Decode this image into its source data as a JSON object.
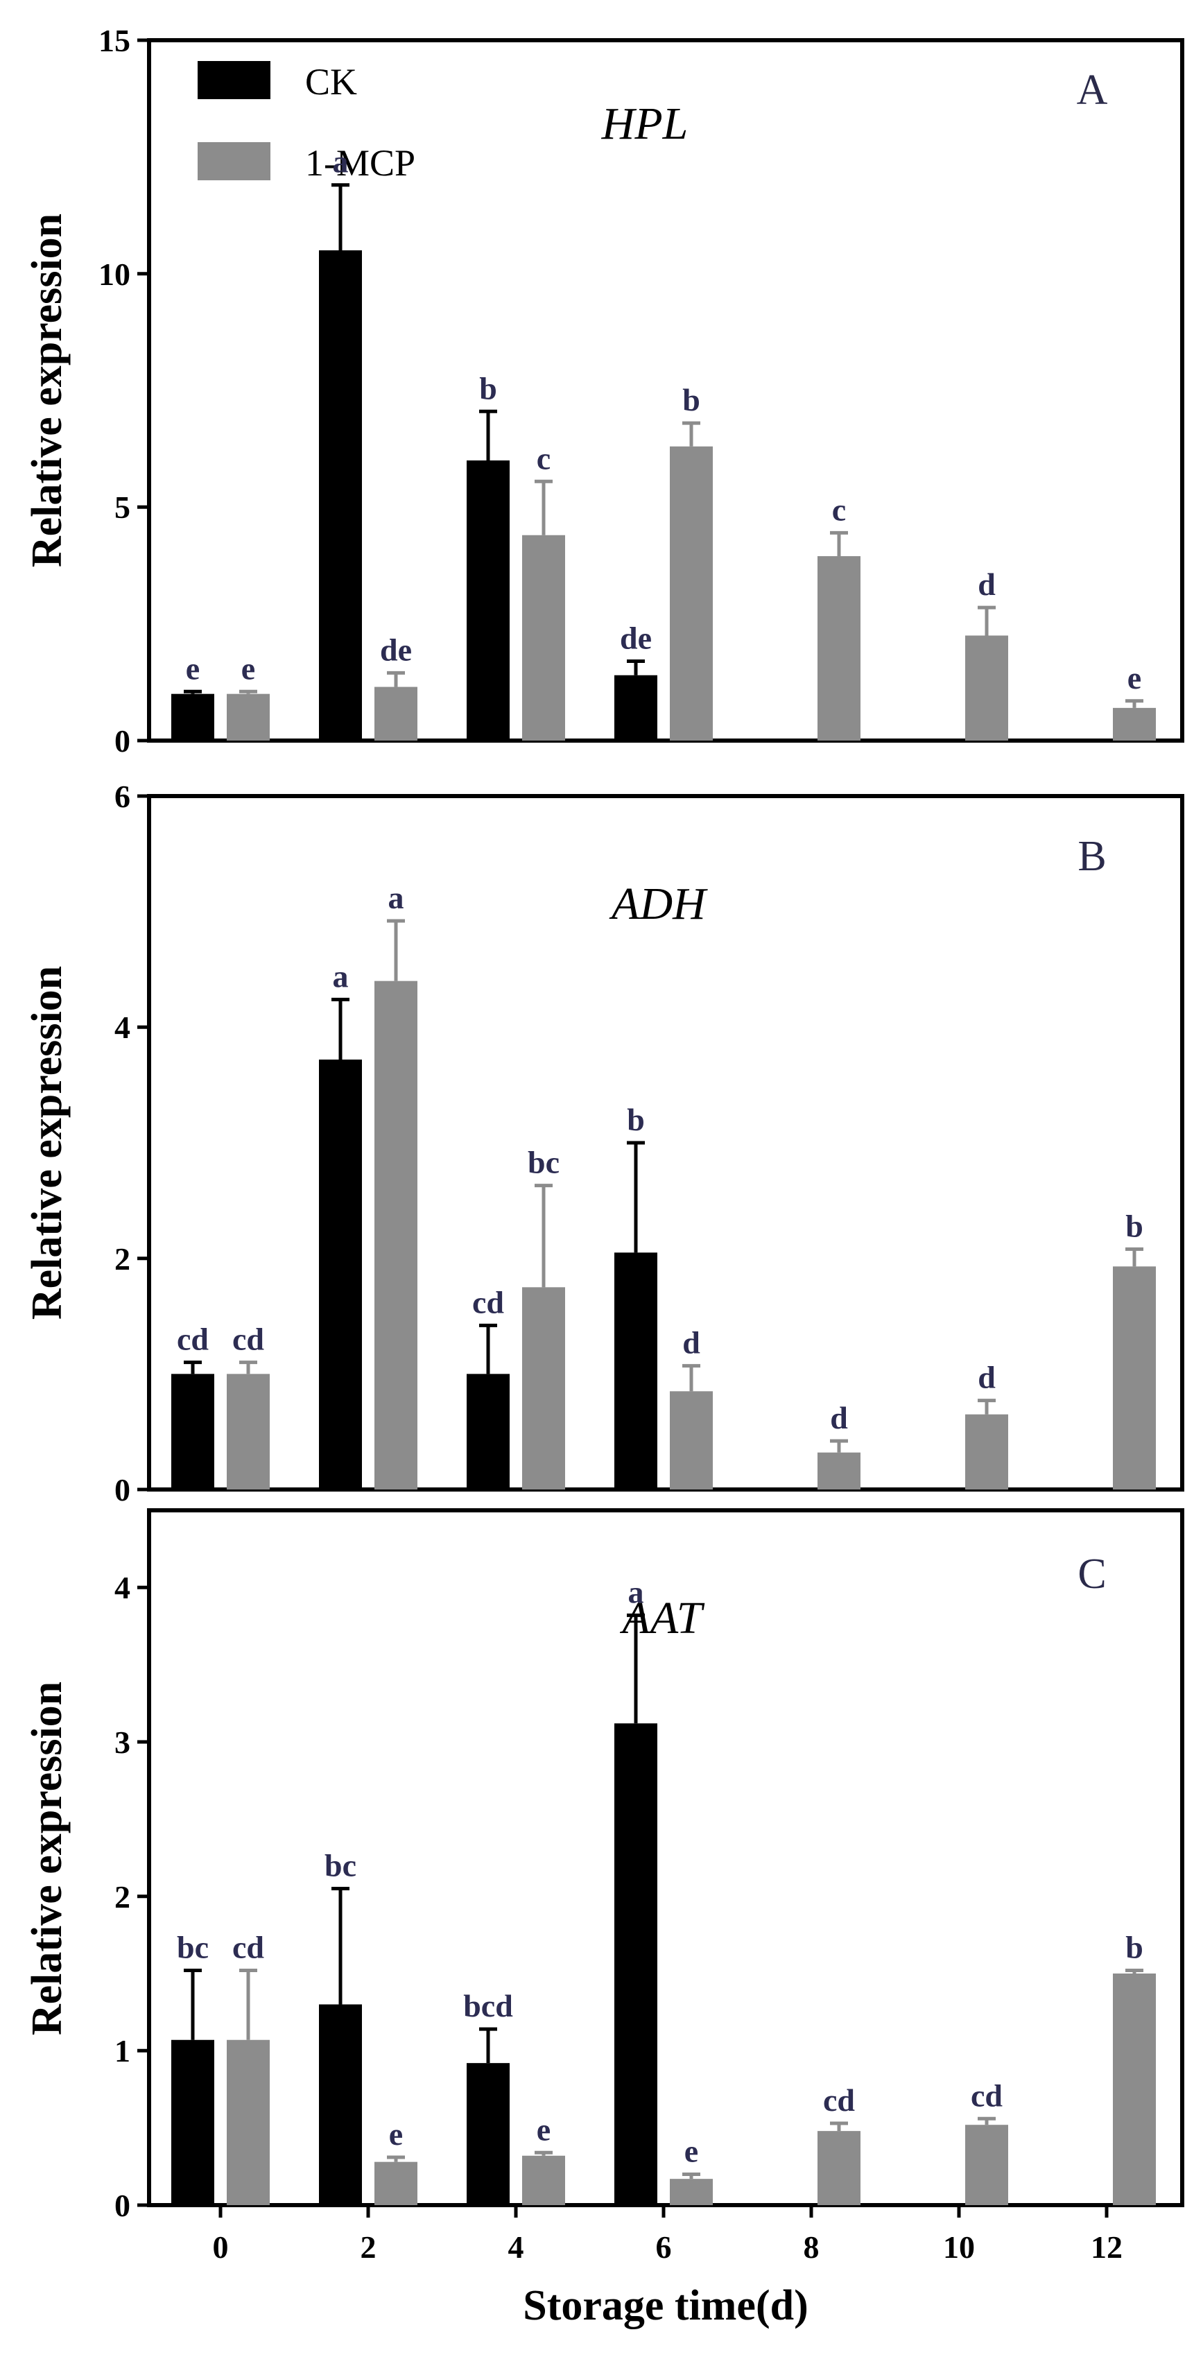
{
  "figure": {
    "xlabel": "Storage time(d)",
    "x_ticks": [
      "0",
      "2",
      "4",
      "6",
      "8",
      "10",
      "12"
    ]
  },
  "legend": [
    {
      "name": "CK",
      "color": "#000000"
    },
    {
      "name": "1-MCP",
      "color": "#8c8c8c"
    }
  ],
  "colors": {
    "CK": "#000000",
    "1-MCP": "#8c8c8c",
    "letters": "#2c2c52"
  },
  "chart_data": [
    {
      "type": "bar",
      "panel_label": "A",
      "title": "HPL",
      "xlabel": "Storage time(d)",
      "ylabel": "Relative expression",
      "ylim": [
        0,
        15
      ],
      "y_ticks": [
        0,
        5,
        10,
        15
      ],
      "categories": [
        "0",
        "2",
        "4",
        "6",
        "8",
        "10",
        "12"
      ],
      "series": [
        {
          "name": "CK",
          "values": [
            1.0,
            10.5,
            6.0,
            1.4,
            null,
            null,
            null
          ],
          "errors": [
            0.05,
            1.4,
            1.05,
            0.3,
            null,
            null,
            null
          ],
          "letters": [
            "e",
            "a",
            "b",
            "de",
            null,
            null,
            null
          ]
        },
        {
          "name": "1-MCP",
          "values": [
            1.0,
            1.15,
            4.4,
            6.3,
            3.95,
            2.25,
            0.7
          ],
          "errors": [
            0.05,
            0.3,
            1.15,
            0.5,
            0.5,
            0.6,
            0.15
          ],
          "letters": [
            "e",
            "de",
            "c",
            "b",
            "c",
            "d",
            "e"
          ]
        }
      ]
    },
    {
      "type": "bar",
      "panel_label": "B",
      "title": "ADH",
      "xlabel": "Storage time(d)",
      "ylabel": "Relative expression",
      "ylim": [
        0,
        6
      ],
      "y_ticks": [
        0,
        2,
        4,
        6
      ],
      "categories": [
        "0",
        "2",
        "4",
        "6",
        "8",
        "10",
        "12"
      ],
      "series": [
        {
          "name": "CK",
          "values": [
            1.0,
            3.72,
            1.0,
            2.05,
            null,
            null,
            null
          ],
          "errors": [
            0.1,
            0.52,
            0.42,
            0.95,
            null,
            null,
            null
          ],
          "letters": [
            "cd",
            "a",
            "cd",
            "b",
            null,
            null,
            null
          ]
        },
        {
          "name": "1-MCP",
          "values": [
            1.0,
            4.4,
            1.75,
            0.85,
            0.32,
            0.65,
            1.93
          ],
          "errors": [
            0.1,
            0.52,
            0.88,
            0.22,
            0.1,
            0.12,
            0.15
          ],
          "letters": [
            "cd",
            "a",
            "bc",
            "d",
            "d",
            "d",
            "b"
          ]
        }
      ]
    },
    {
      "type": "bar",
      "panel_label": "C",
      "title": "AAT",
      "xlabel": "Storage time(d)",
      "ylabel": "Relative expression",
      "ylim": [
        0,
        4.5
      ],
      "y_ticks": [
        0,
        1,
        2,
        3,
        4
      ],
      "categories": [
        "0",
        "2",
        "4",
        "6",
        "8",
        "10",
        "12"
      ],
      "series": [
        {
          "name": "CK",
          "values": [
            1.07,
            1.3,
            0.92,
            3.12,
            null,
            null,
            null
          ],
          "errors": [
            0.45,
            0.75,
            0.22,
            0.7,
            null,
            null,
            null
          ],
          "letters": [
            "bc",
            "bc",
            "bcd",
            "a",
            null,
            null,
            null
          ]
        },
        {
          "name": "1-MCP",
          "values": [
            1.07,
            0.28,
            0.32,
            0.17,
            0.48,
            0.52,
            1.5
          ],
          "errors": [
            0.45,
            0.03,
            0.02,
            0.03,
            0.05,
            0.04,
            0.02
          ],
          "letters": [
            "cd",
            "e",
            "e",
            "e",
            "cd",
            "cd",
            "b"
          ]
        }
      ]
    }
  ]
}
